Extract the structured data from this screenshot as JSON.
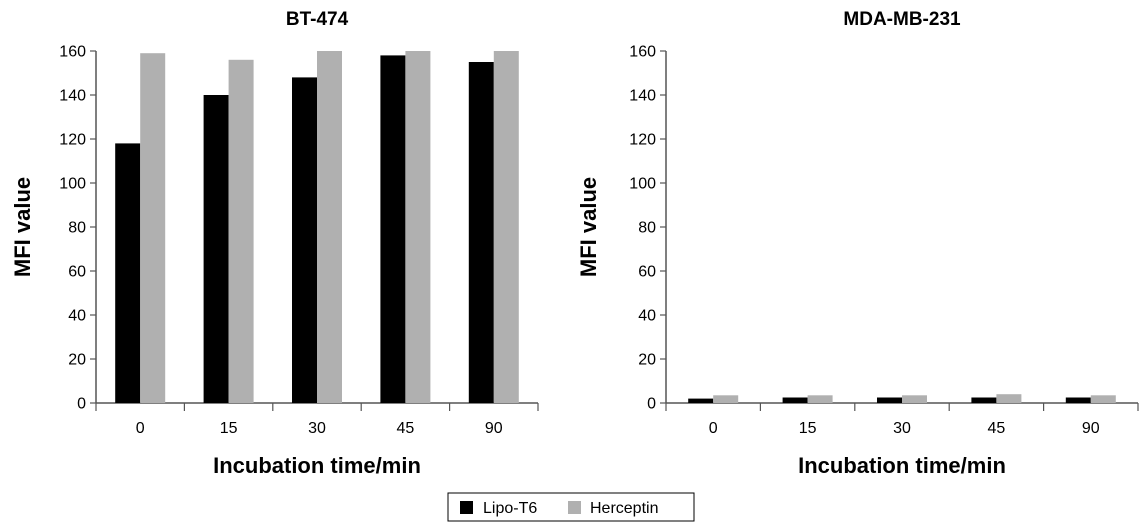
{
  "chart_data": [
    {
      "type": "bar",
      "title": "BT-474",
      "xlabel": "Incubation time/min",
      "ylabel": "MFI value",
      "ylim": [
        0,
        160
      ],
      "yticks": [
        "0",
        "20",
        "40",
        "60",
        "80",
        "100",
        "120",
        "140",
        "160"
      ],
      "categories": [
        "0",
        "15",
        "30",
        "45",
        "90"
      ],
      "series": [
        {
          "name": "Lipo-T6",
          "color": "#000000",
          "values": [
            118,
            140,
            148,
            158,
            155
          ]
        },
        {
          "name": "Herceptin",
          "color": "#b0b0b0",
          "values": [
            159,
            156,
            160,
            160,
            160
          ]
        }
      ],
      "grid": false
    },
    {
      "type": "bar",
      "title": "MDA-MB-231",
      "xlabel": "Incubation time/min",
      "ylabel": "MFI value",
      "ylim": [
        0,
        160
      ],
      "yticks": [
        "0",
        "20",
        "40",
        "60",
        "80",
        "100",
        "120",
        "140",
        "160"
      ],
      "categories": [
        "0",
        "15",
        "30",
        "45",
        "90"
      ],
      "series": [
        {
          "name": "Lipo-T6",
          "color": "#000000",
          "values": [
            2,
            2.5,
            2.5,
            2.5,
            2.5
          ]
        },
        {
          "name": "Herceptin",
          "color": "#b0b0b0",
          "values": [
            3.5,
            3.5,
            3.5,
            4,
            3.5
          ]
        }
      ],
      "grid": false
    }
  ],
  "legend": {
    "placement": "bottom-center",
    "items": [
      {
        "label": "Lipo-T6",
        "color": "#000000"
      },
      {
        "label": "Herceptin",
        "color": "#b0b0b0"
      }
    ]
  }
}
